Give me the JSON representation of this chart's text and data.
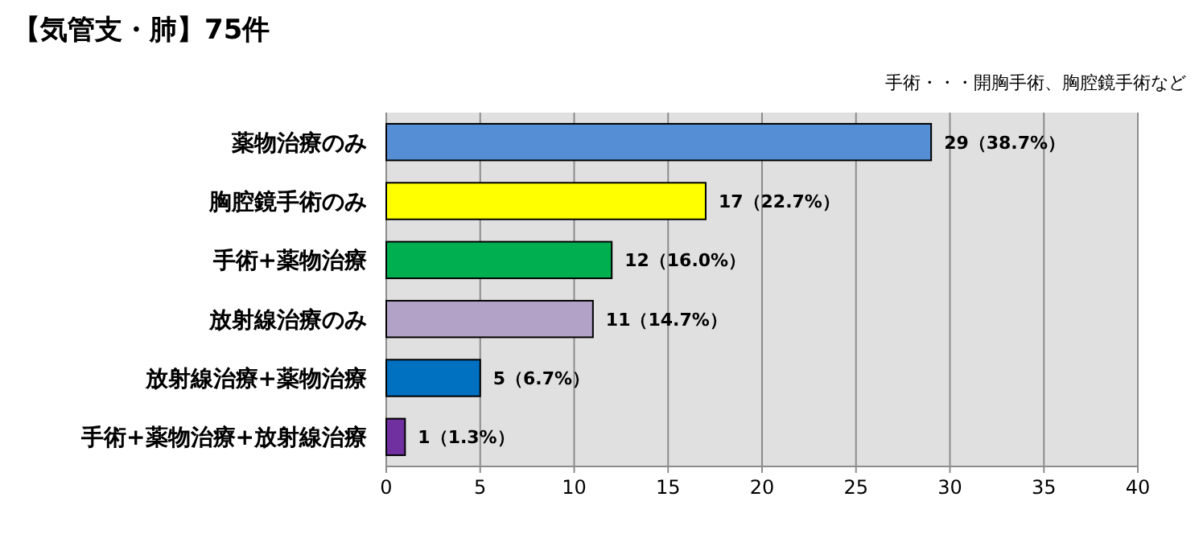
{
  "chart_data": {
    "type": "bar",
    "orientation": "horizontal",
    "title": "【気管支・肺】75件",
    "annotations": [
      "手術・・・開胸手術、胸腔鏡手術など"
    ],
    "categories": [
      "薬物治療のみ",
      "胸腔鏡手術のみ",
      "手術+薬物治療",
      "放射線治療のみ",
      "放射線治療+薬物治療",
      "手術+薬物治療+放射線治療"
    ],
    "values": [
      29,
      17,
      12,
      11,
      5,
      1
    ],
    "colors": [
      "#558ed5",
      "#ffff00",
      "#00b050",
      "#b3a2c7",
      "#0070c0",
      "#7030a0"
    ],
    "value_labels": [
      "29（38.7%）",
      "17（22.7%）",
      "12（16.0%）",
      "11（14.7%）",
      "5（6.7%）",
      "1（1.3%）"
    ],
    "xlim": [
      0,
      40
    ],
    "xticks": [
      0,
      5,
      10,
      15,
      20,
      25,
      30,
      35,
      40
    ],
    "grid": "x"
  }
}
